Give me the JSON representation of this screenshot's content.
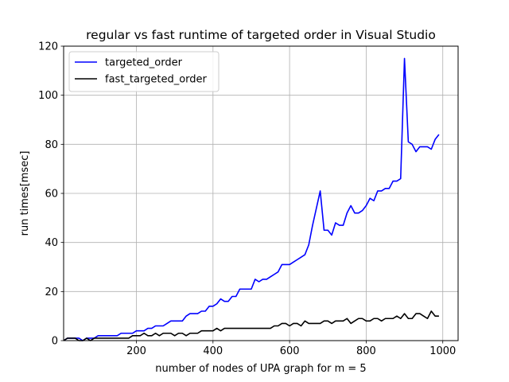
{
  "chart_data": {
    "type": "line",
    "title": "regular vs fast runtime of targeted order in Visual Studio",
    "xlabel": "number of nodes of UPA graph for m = 5",
    "ylabel": "run times[msec]",
    "xlim": [
      10,
      1040
    ],
    "ylim": [
      0,
      120
    ],
    "xticks": [
      200,
      400,
      600,
      800,
      1000
    ],
    "yticks": [
      0,
      20,
      40,
      60,
      80,
      100,
      120
    ],
    "grid": true,
    "legend_position": "top-left",
    "x": [
      10,
      20,
      30,
      40,
      50,
      60,
      70,
      80,
      90,
      100,
      110,
      120,
      130,
      140,
      150,
      160,
      170,
      180,
      190,
      200,
      210,
      220,
      230,
      240,
      250,
      260,
      270,
      280,
      290,
      300,
      310,
      320,
      330,
      340,
      350,
      360,
      370,
      380,
      390,
      400,
      410,
      420,
      430,
      440,
      450,
      460,
      470,
      480,
      490,
      500,
      510,
      520,
      530,
      540,
      550,
      560,
      570,
      580,
      590,
      600,
      610,
      620,
      630,
      640,
      650,
      660,
      670,
      680,
      690,
      700,
      710,
      720,
      730,
      740,
      750,
      760,
      770,
      780,
      790,
      800,
      810,
      820,
      830,
      840,
      850,
      860,
      870,
      880,
      890,
      900,
      910,
      920,
      930,
      940,
      950,
      960,
      970,
      980,
      990
    ],
    "series": [
      {
        "name": "targeted_order",
        "color": "#0000ff",
        "values": [
          0,
          1,
          1,
          1,
          1,
          0,
          1,
          1,
          1,
          2,
          2,
          2,
          2,
          2,
          2,
          3,
          3,
          3,
          3,
          4,
          4,
          4,
          5,
          5,
          6,
          6,
          6,
          7,
          8,
          8,
          8,
          8,
          10,
          11,
          11,
          11,
          12,
          12,
          14,
          14,
          15,
          17,
          16,
          16,
          18,
          18,
          21,
          21,
          21,
          21,
          25,
          24,
          25,
          25,
          26,
          27,
          28,
          31,
          31,
          31,
          32,
          33,
          34,
          35,
          39,
          47,
          54,
          61,
          45,
          45,
          43,
          48,
          47,
          47,
          52,
          55,
          52,
          52,
          53,
          55,
          58,
          57,
          61,
          61,
          62,
          62,
          65,
          65,
          66,
          115,
          81,
          80,
          77,
          79,
          79,
          79,
          78,
          82,
          84
        ]
      },
      {
        "name": "fast_targeted_order",
        "color": "#000000",
        "values": [
          0,
          1,
          1,
          1,
          0,
          0,
          1,
          0,
          1,
          1,
          1,
          1,
          1,
          1,
          1,
          1,
          1,
          1,
          2,
          2,
          2,
          3,
          2,
          2,
          3,
          2,
          3,
          3,
          3,
          2,
          3,
          3,
          2,
          3,
          3,
          3,
          4,
          4,
          4,
          4,
          5,
          4,
          5,
          5,
          5,
          5,
          5,
          5,
          5,
          5,
          5,
          5,
          5,
          5,
          5,
          6,
          6,
          7,
          7,
          6,
          7,
          7,
          6,
          8,
          7,
          7,
          7,
          7,
          8,
          8,
          7,
          8,
          8,
          8,
          9,
          7,
          8,
          9,
          9,
          8,
          8,
          9,
          9,
          8,
          9,
          9,
          9,
          10,
          9,
          11,
          9,
          9,
          11,
          11,
          10,
          9,
          12,
          10,
          10
        ]
      }
    ]
  }
}
